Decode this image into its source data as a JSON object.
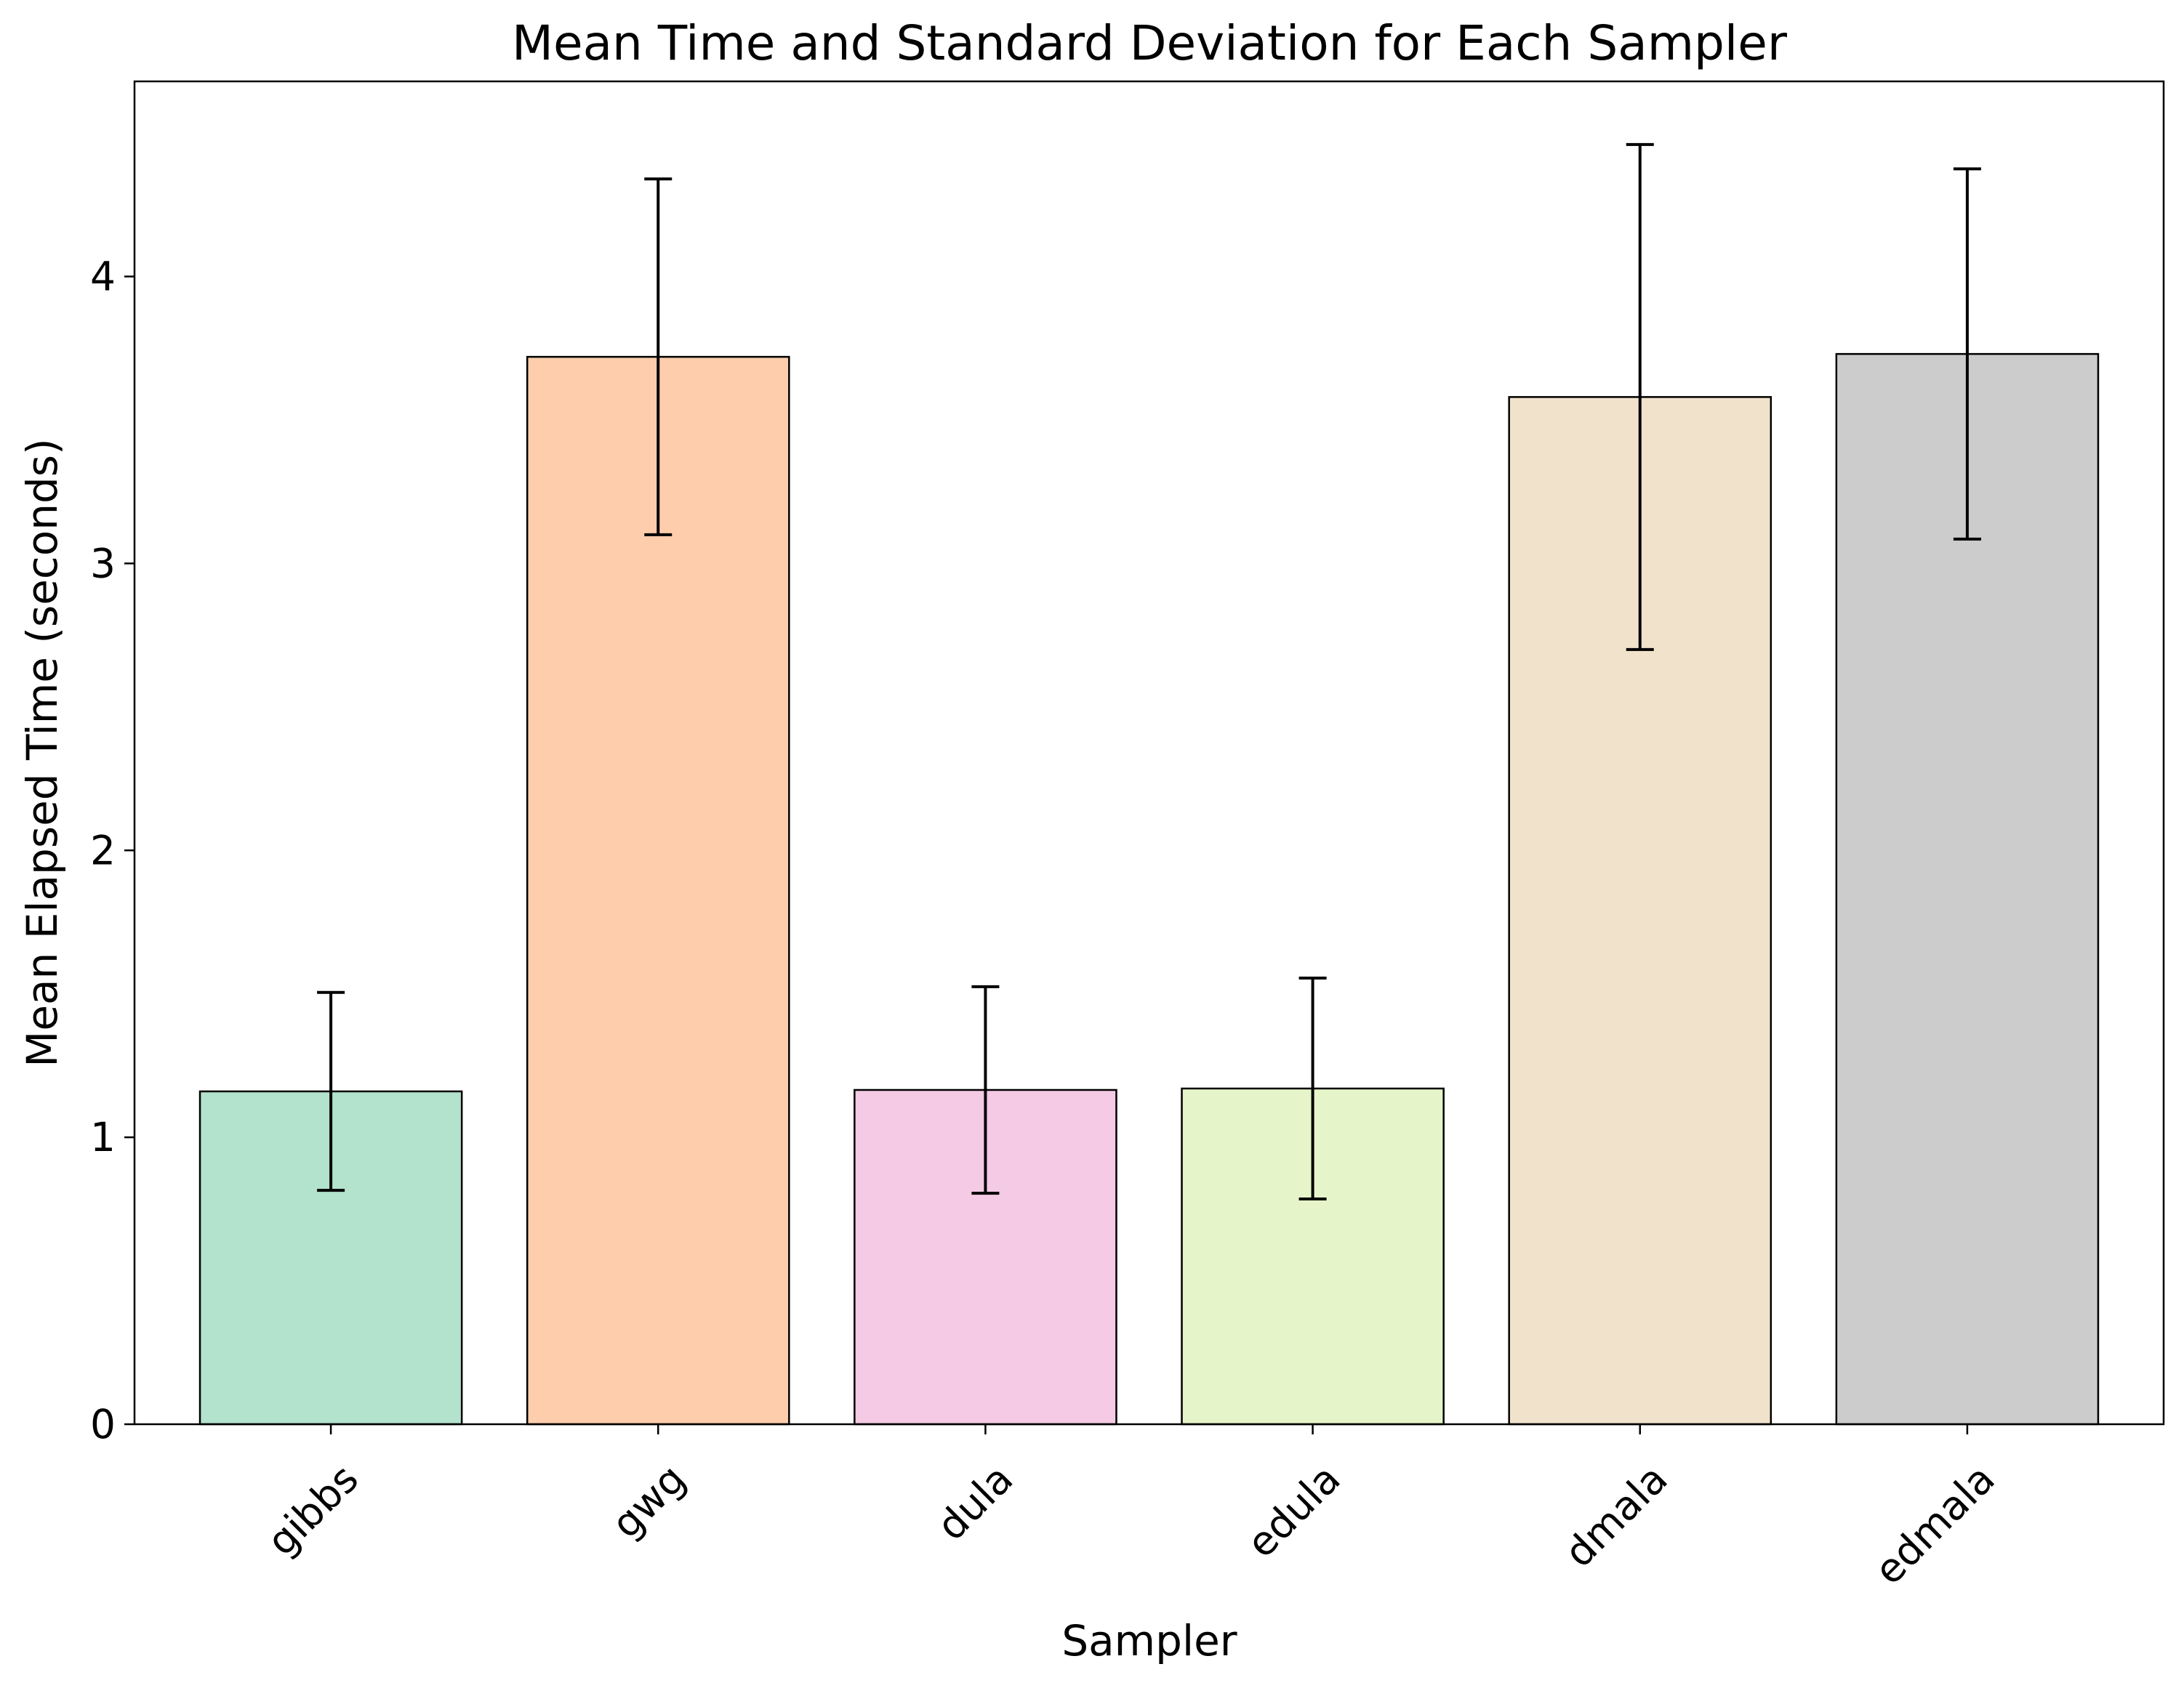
{
  "chart_data": {
    "type": "bar",
    "title": "Mean Time and Standard Deviation for Each Sampler",
    "xlabel": "Sampler",
    "ylabel": "Mean Elapsed Time (seconds)",
    "categories": [
      "gibbs",
      "gwg",
      "dula",
      "edula",
      "dmala",
      "edmala"
    ],
    "values": [
      1.16,
      3.72,
      1.165,
      1.17,
      3.58,
      3.73
    ],
    "error": [
      0.345,
      0.62,
      0.36,
      0.385,
      0.88,
      0.645
    ],
    "colors": [
      "#b3e2cd",
      "#fdcdac",
      "#f4cae4",
      "#e6f5c9",
      "#f1e2cc",
      "#cccccc"
    ],
    "ylim": [
      0,
      4.68
    ],
    "yticks": [
      0,
      1,
      2,
      3,
      4
    ],
    "grid": false,
    "xtick_rotation": 45
  }
}
